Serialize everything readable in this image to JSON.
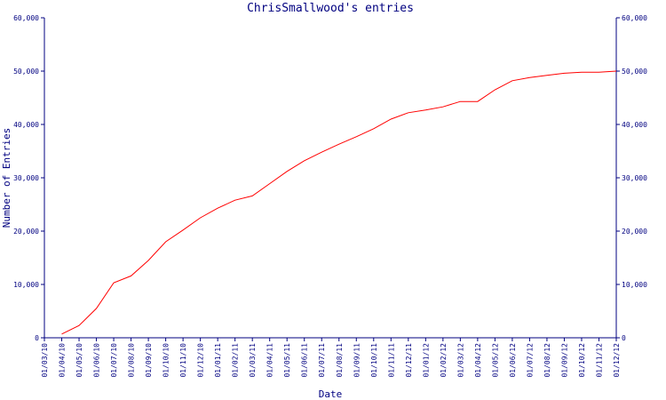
{
  "chart_data": {
    "type": "line",
    "title": "ChrisSmallwood's entries",
    "x_label": "Date",
    "y_label": "Number of Entries",
    "categories": [
      "01/03/10",
      "01/04/10",
      "01/05/10",
      "01/06/10",
      "01/07/10",
      "01/08/10",
      "01/09/10",
      "01/10/10",
      "01/11/10",
      "01/12/10",
      "01/01/11",
      "01/02/11",
      "01/03/11",
      "01/04/11",
      "01/05/11",
      "01/06/11",
      "01/07/11",
      "01/08/11",
      "01/09/11",
      "01/10/11",
      "01/11/11",
      "01/12/11",
      "01/01/12",
      "01/02/12",
      "01/03/12",
      "01/04/12",
      "01/05/12",
      "01/06/12",
      "01/07/12",
      "01/08/12",
      "01/09/12",
      "01/10/12",
      "01/11/12",
      "01/12/12"
    ],
    "series": [
      {
        "name": "entries",
        "color": "#ff0000",
        "values": [
          null,
          700,
          2300,
          5500,
          10300,
          11600,
          14500,
          18000,
          20200,
          22500,
          24300,
          25800,
          26600,
          28900,
          31200,
          33200,
          34800,
          36300,
          37700,
          39200,
          41000,
          42200,
          42700,
          43300,
          44300,
          44300,
          46500,
          48200,
          48800,
          49200,
          49600,
          49800,
          49800,
          50000
        ]
      }
    ],
    "ylim": [
      0,
      60000
    ],
    "yticks": [
      0,
      {
        "value": 10000,
        "label": "10,000"
      },
      {
        "value": 20000,
        "label": "20,000"
      },
      {
        "value": 30000,
        "label": "30,000"
      },
      {
        "value": 40000,
        "label": "40,000"
      },
      {
        "value": 50000,
        "label": "50,000"
      },
      {
        "value": 60000,
        "label": "60,000"
      }
    ],
    "axis_color": "#000080",
    "grid": false
  }
}
